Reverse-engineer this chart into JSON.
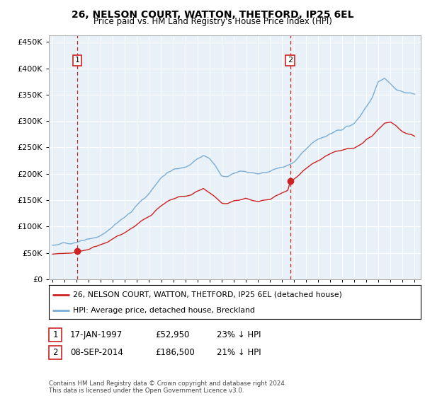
{
  "title": "26, NELSON COURT, WATTON, THETFORD, IP25 6EL",
  "subtitle": "Price paid vs. HM Land Registry's House Price Index (HPI)",
  "legend_line1": "26, NELSON COURT, WATTON, THETFORD, IP25 6EL (detached house)",
  "legend_line2": "HPI: Average price, detached house, Breckland",
  "footnote": "Contains HM Land Registry data © Crown copyright and database right 2024.\nThis data is licensed under the Open Government Licence v3.0.",
  "sale1_date": 1997.04,
  "sale1_price": 52950,
  "sale2_date": 2014.69,
  "sale2_price": 186500,
  "hpi_color": "#7aadd4",
  "price_color": "#cc2222",
  "vline_color": "#cc2222",
  "background_color": "#e8f0f8",
  "ylim": [
    0,
    462000
  ],
  "yticks": [
    0,
    50000,
    100000,
    150000,
    200000,
    250000,
    300000,
    350000,
    400000,
    450000
  ],
  "xlim": [
    1994.7,
    2025.5
  ],
  "xticks": [
    1995,
    1996,
    1997,
    1998,
    1999,
    2000,
    2001,
    2002,
    2003,
    2004,
    2005,
    2006,
    2007,
    2008,
    2009,
    2010,
    2011,
    2012,
    2013,
    2014,
    2015,
    2016,
    2017,
    2018,
    2019,
    2020,
    2021,
    2022,
    2023,
    2024,
    2025
  ]
}
